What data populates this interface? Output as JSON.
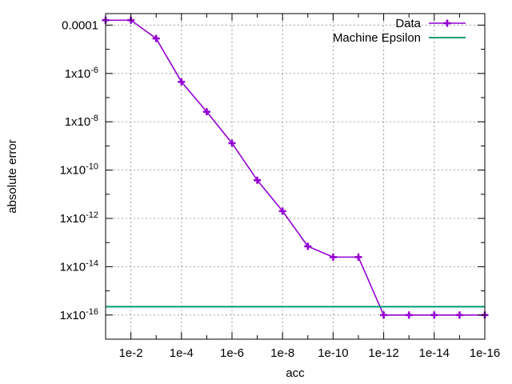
{
  "chart_data": {
    "type": "line",
    "xlabel": "acc",
    "ylabel": "absolute error",
    "x_scale": "log",
    "y_scale": "log",
    "x_reversed": true,
    "xlim": [
      0.1,
      1e-16
    ],
    "ylim": [
      1e-17,
      0.0003
    ],
    "grid": true,
    "legend_position": "top-right",
    "x_ticks": [
      {
        "value": 0.01,
        "label": "1e-2"
      },
      {
        "value": 0.0001,
        "label": "1e-4"
      },
      {
        "value": 1e-06,
        "label": "1e-6"
      },
      {
        "value": 1e-08,
        "label": "1e-8"
      },
      {
        "value": 1e-10,
        "label": "1e-10"
      },
      {
        "value": 1e-12,
        "label": "1e-12"
      },
      {
        "value": 1e-14,
        "label": "1e-14"
      },
      {
        "value": 1e-16,
        "label": "1e-16"
      }
    ],
    "y_ticks": [
      {
        "value": 0.0001,
        "label": "0.0001",
        "mantissa": "",
        "exponent": ""
      },
      {
        "value": 1e-06,
        "label": "1x10-6",
        "mantissa": "1x10",
        "exponent": "-6"
      },
      {
        "value": 1e-08,
        "label": "1x10-8",
        "mantissa": "1x10",
        "exponent": "-8"
      },
      {
        "value": 1e-10,
        "label": "1x10-10",
        "mantissa": "1x10",
        "exponent": "-10"
      },
      {
        "value": 1e-12,
        "label": "1x10-12",
        "mantissa": "1x10",
        "exponent": "-12"
      },
      {
        "value": 1e-14,
        "label": "1x10-14",
        "mantissa": "1x10",
        "exponent": "-14"
      },
      {
        "value": 1e-16,
        "label": "1x10-16",
        "mantissa": "1x10",
        "exponent": "-16"
      }
    ],
    "series": [
      {
        "name": "Data",
        "color": "#9400d3",
        "marker": "plus",
        "points": [
          [
            0.1,
            0.00016
          ],
          [
            0.01,
            0.00016
          ],
          [
            0.001,
            2.8e-05
          ],
          [
            0.0001,
            4.5e-07
          ],
          [
            1e-05,
            2.6e-08
          ],
          [
            1e-06,
            1.3e-09
          ],
          [
            1e-07,
            3.8e-11
          ],
          [
            1e-08,
            2e-12
          ],
          [
            1e-09,
            7e-14
          ],
          [
            1e-10,
            2.5e-14
          ],
          [
            1e-11,
            2.5e-14
          ],
          [
            1e-12,
            1e-16
          ],
          [
            1e-13,
            1e-16
          ],
          [
            1e-14,
            1e-16
          ],
          [
            1e-15,
            1e-16
          ],
          [
            1e-16,
            1e-16
          ]
        ]
      },
      {
        "name": "Machine Epsilon",
        "color": "#009e73",
        "type": "hline",
        "y": 2.22e-16
      }
    ]
  }
}
